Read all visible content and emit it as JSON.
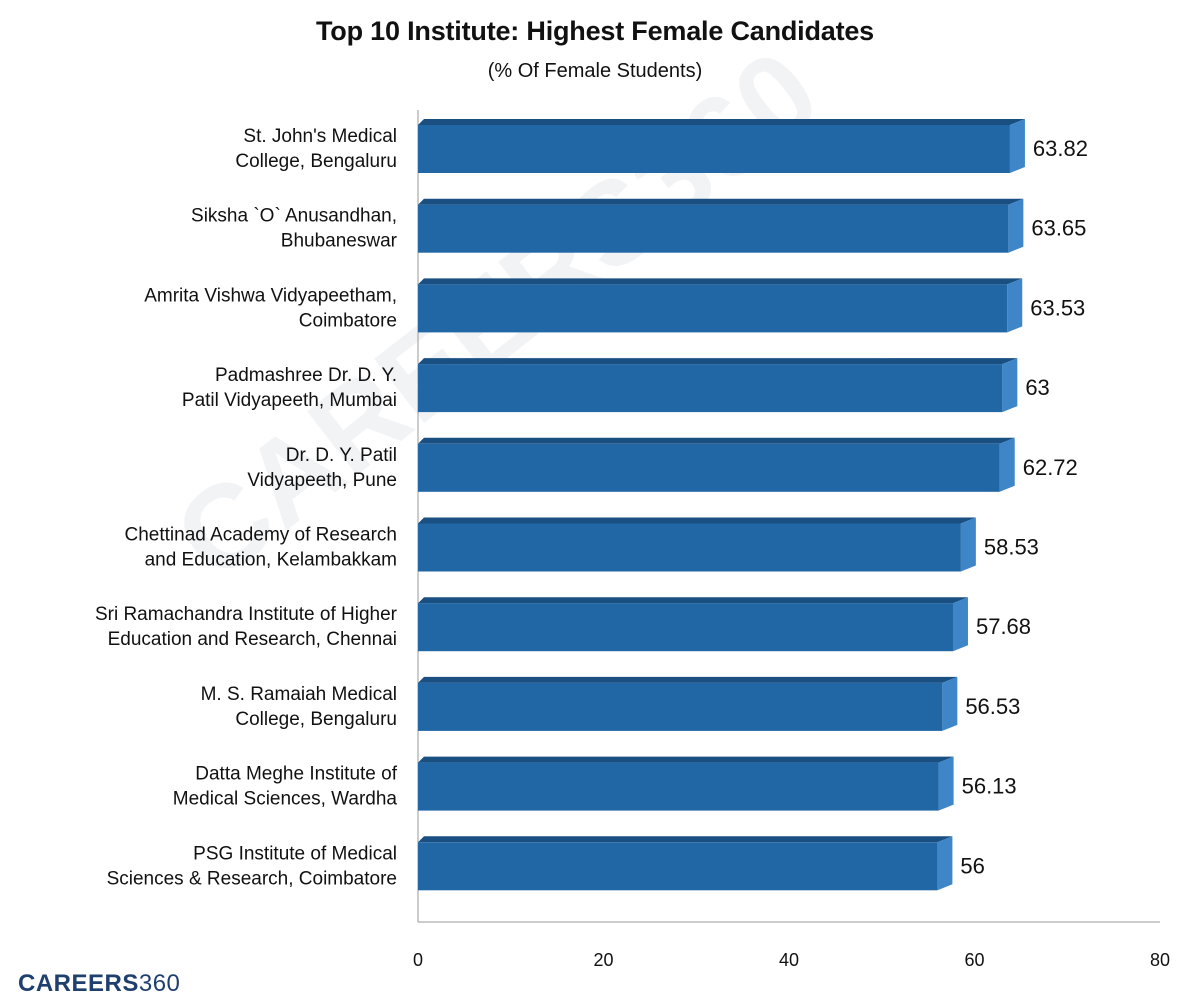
{
  "brand": {
    "name": "CAREERS",
    "number": "360"
  },
  "watermark": "CAREERS360",
  "chart_data": {
    "type": "bar",
    "orientation": "horizontal",
    "title": "Top 10 Institute: Highest Female Candidates",
    "subtitle": "(% Of Female Students)",
    "categories": [
      [
        "St. John's Medical",
        "College, Bengaluru"
      ],
      [
        "Siksha `O` Anusandhan,",
        "Bhubaneswar"
      ],
      [
        "Amrita Vishwa Vidyapeetham,",
        "Coimbatore"
      ],
      [
        "Padmashree Dr. D. Y.",
        "Patil Vidyapeeth, Mumbai"
      ],
      [
        "Dr. D. Y. Patil",
        "Vidyapeeth, Pune"
      ],
      [
        "Chettinad Academy of Research",
        "and Education, Kelambakkam"
      ],
      [
        "Sri Ramachandra Institute of Higher",
        "Education and Research, Chennai"
      ],
      [
        "M. S. Ramaiah Medical",
        "College, Bengaluru"
      ],
      [
        "Datta Meghe Institute of",
        "Medical Sciences, Wardha"
      ],
      [
        "PSG Institute of Medical",
        "Sciences & Research, Coimbatore"
      ]
    ],
    "values": [
      63.82,
      63.65,
      63.53,
      63,
      62.72,
      58.53,
      57.68,
      56.53,
      56.13,
      56
    ],
    "value_labels": [
      "63.82",
      "63.65",
      "63.53",
      "63",
      "62.72",
      "58.53",
      "57.68",
      "56.53",
      "56.13",
      "56"
    ],
    "xlim": [
      0,
      80
    ],
    "xticks": [
      "0",
      "20",
      "40",
      "60",
      "80"
    ],
    "grid": false,
    "legend": "none",
    "colors": {
      "bar_front": "#2166a5",
      "bar_top": "#1a4f82",
      "bar_side": "#3f86c9"
    }
  }
}
